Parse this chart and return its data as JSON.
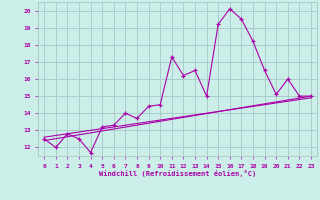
{
  "background_color": "#cceee8",
  "grid_color": "#aacccc",
  "line_color": "#aa00aa",
  "xlabel": "Windchill (Refroidissement éolien,°C)",
  "xlim": [
    -0.5,
    23.5
  ],
  "ylim": [
    11.5,
    20.5
  ],
  "yticks": [
    12,
    13,
    14,
    15,
    16,
    17,
    18,
    19,
    20
  ],
  "xticks": [
    0,
    1,
    2,
    3,
    4,
    5,
    6,
    7,
    8,
    9,
    10,
    11,
    12,
    13,
    14,
    15,
    16,
    17,
    18,
    19,
    20,
    21,
    22,
    23
  ],
  "line1_x": [
    0,
    1,
    2,
    3,
    4,
    5,
    6,
    7,
    8,
    9,
    10,
    11,
    12,
    13,
    14,
    15,
    16,
    17,
    18,
    19,
    20,
    21,
    22,
    23
  ],
  "line1_y": [
    12.5,
    12.0,
    12.8,
    12.5,
    11.7,
    13.2,
    13.3,
    14.0,
    13.7,
    14.4,
    14.5,
    17.3,
    16.2,
    16.5,
    15.0,
    19.2,
    20.1,
    19.5,
    18.2,
    16.5,
    15.1,
    16.0,
    15.0,
    15.0
  ],
  "line2_x": [
    0,
    23
  ],
  "line2_y": [
    12.4,
    15.0
  ],
  "line3_x": [
    0,
    23
  ],
  "line3_y": [
    12.6,
    14.9
  ]
}
